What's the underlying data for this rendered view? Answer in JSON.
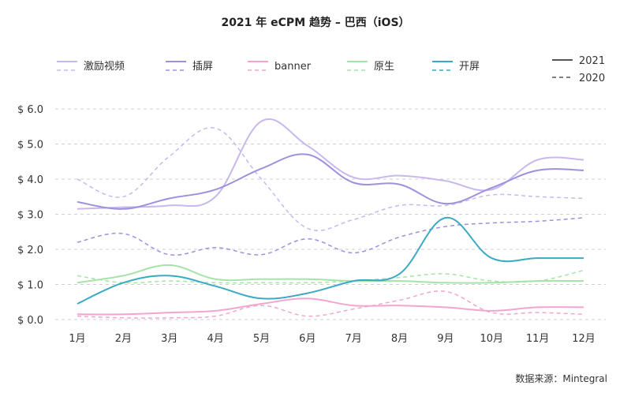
{
  "chart_data": {
    "type": "line",
    "title": "2021 年 eCPM 趋势 – 巴西（iOS）",
    "source": "数据来源：Mintegral",
    "categories": [
      "1月",
      "2月",
      "3月",
      "4月",
      "5月",
      "6月",
      "7月",
      "8月",
      "9月",
      "10月",
      "11月",
      "12月"
    ],
    "ylim": [
      0,
      6
    ],
    "yticks": [
      0,
      1,
      2,
      3,
      4,
      5,
      6
    ],
    "ytick_labels": [
      "$ 0.0",
      "$ 1.0",
      "$ 2.0",
      "$ 3.0",
      "$ 4.0",
      "$ 5.0",
      "$ 6.0"
    ],
    "grid": true,
    "legend_style": {
      "solid_label": "2021",
      "dashed_label": "2020"
    },
    "series": [
      {
        "name": "激励视频",
        "color": "#c8b8ee",
        "values_2021": [
          3.15,
          3.2,
          3.25,
          3.5,
          5.65,
          4.95,
          4.05,
          4.1,
          3.95,
          3.7,
          4.55,
          4.55
        ],
        "values_2020": [
          4.0,
          3.5,
          4.65,
          5.45,
          4.0,
          2.6,
          2.85,
          3.25,
          3.25,
          3.55,
          3.5,
          3.45
        ]
      },
      {
        "name": "插屏",
        "color": "#9d91dd",
        "values_2021": [
          3.35,
          3.15,
          3.45,
          3.7,
          4.3,
          4.7,
          3.9,
          3.85,
          3.3,
          3.75,
          4.25,
          4.25
        ],
        "values_2020": [
          2.2,
          2.45,
          1.85,
          2.05,
          1.85,
          2.3,
          1.9,
          2.35,
          2.65,
          2.75,
          2.8,
          2.9
        ]
      },
      {
        "name": "banner",
        "color": "#f2a6cd",
        "values_2021": [
          0.15,
          0.15,
          0.2,
          0.25,
          0.45,
          0.6,
          0.4,
          0.4,
          0.35,
          0.25,
          0.35,
          0.35
        ],
        "values_2020": [
          0.1,
          0.05,
          0.05,
          0.1,
          0.4,
          0.1,
          0.3,
          0.55,
          0.8,
          0.2,
          0.2,
          0.15
        ]
      },
      {
        "name": "原生",
        "color": "#a6e3a8",
        "values_2021": [
          1.05,
          1.25,
          1.55,
          1.15,
          1.15,
          1.15,
          1.1,
          1.1,
          1.05,
          1.05,
          1.1,
          1.1
        ],
        "values_2020": [
          1.25,
          1.05,
          1.1,
          1.05,
          1.05,
          1.05,
          1.1,
          1.2,
          1.3,
          1.1,
          1.1,
          1.4
        ]
      },
      {
        "name": "开屏",
        "color": "#3aa9c3",
        "values_2021": [
          0.45,
          1.05,
          1.25,
          0.95,
          0.6,
          0.75,
          1.1,
          1.3,
          2.9,
          1.75,
          1.75,
          1.75
        ],
        "values_2020": []
      }
    ]
  }
}
